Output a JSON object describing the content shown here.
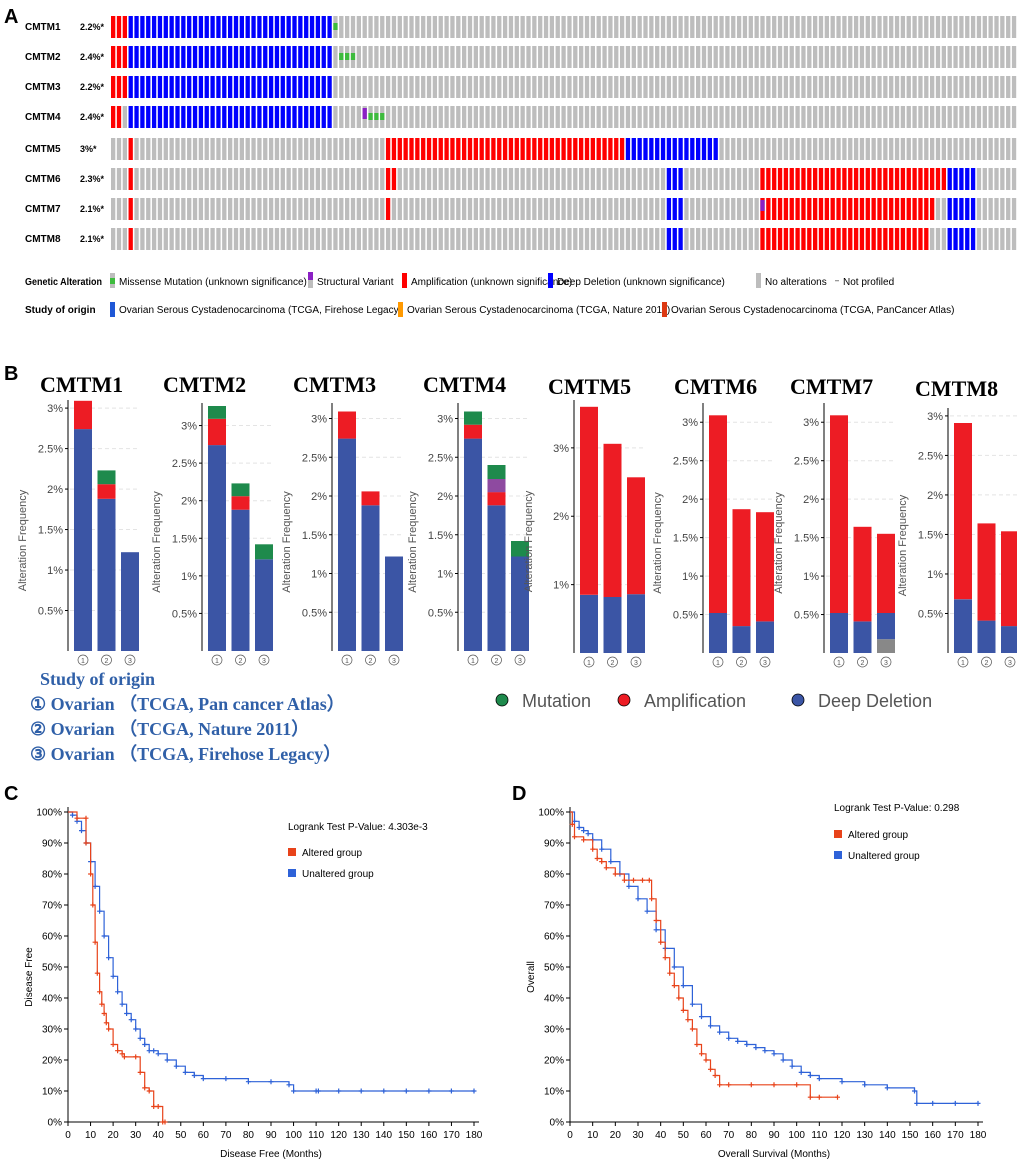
{
  "panel_letters": {
    "a": "A",
    "b": "B",
    "c": "C",
    "d": "D"
  },
  "legend_a": {
    "genetic_alteration_label": "Genetic Alteration",
    "items": [
      {
        "label": "Missense Mutation (unknown significance)",
        "color": "#3dbb3d",
        "glyph": "short"
      },
      {
        "label": "Structural Variant",
        "color": "#8b20c4",
        "glyph": "short"
      },
      {
        "label": "Amplification (unknown significance)",
        "color": "#ff0000",
        "glyph": "full"
      },
      {
        "label": "Deep Deletion (unknown significance)",
        "color": "#0000ff",
        "glyph": "full"
      },
      {
        "label": "No alterations",
        "color": "#bdbdbd",
        "glyph": "full"
      },
      {
        "label": "Not profiled",
        "color": "#999999",
        "glyph": "dash"
      }
    ],
    "study_origin_label": "Study of origin",
    "studies": [
      {
        "label": "Ovarian Serous Cystadenocarcinoma (TCGA, Firehose Legacy)",
        "color": "#1f57d6"
      },
      {
        "label": "Ovarian Serous Cystadenocarcinoma (TCGA, Nature 2011)",
        "color": "#ff9900"
      },
      {
        "label": "Ovarian Serous Cystadenocarcinoma (TCGA, PanCancer Atlas)",
        "color": "#dc3912"
      }
    ]
  },
  "oncoprint": {
    "colors": {
      "amp": "#ff0000",
      "del": "#0000ff",
      "none": "#bdbdbd",
      "mut": "#3dbb3d",
      "sv": "#8b20c4"
    },
    "rows": [
      {
        "gene": "CMTM1",
        "pct": "2.2%*",
        "segments": [
          [
            "amp",
            3
          ],
          [
            "del",
            35
          ],
          [
            "none",
            117
          ]
        ],
        "marks": [
          {
            "type": "mut",
            "i": 38
          }
        ]
      },
      {
        "gene": "CMTM2",
        "pct": "2.4%*",
        "segments": [
          [
            "amp",
            3
          ],
          [
            "del",
            35
          ],
          [
            "none",
            117
          ]
        ],
        "marks": [
          {
            "type": "mut",
            "i": 39
          },
          {
            "type": "mut",
            "i": 40
          },
          {
            "type": "mut",
            "i": 41
          }
        ]
      },
      {
        "gene": "CMTM3",
        "pct": "2.2%*",
        "segments": [
          [
            "amp",
            3
          ],
          [
            "del",
            35
          ],
          [
            "none",
            117
          ]
        ],
        "marks": []
      },
      {
        "gene": "CMTM4",
        "pct": "2.4%*",
        "segments": [
          [
            "amp",
            2
          ],
          [
            "none",
            1
          ],
          [
            "del",
            35
          ],
          [
            "none",
            117
          ]
        ],
        "marks": [
          {
            "type": "sv",
            "i": 43
          },
          {
            "type": "mut",
            "i": 44
          },
          {
            "type": "mut",
            "i": 45
          },
          {
            "type": "mut",
            "i": 46
          }
        ]
      },
      {
        "gene": "CMTM5",
        "pct": "3%*",
        "segments": [
          [
            "none",
            3
          ],
          [
            "amp",
            1
          ],
          [
            "none",
            43
          ],
          [
            "amp",
            41
          ],
          [
            "del",
            16
          ],
          [
            "none",
            51
          ]
        ],
        "marks": []
      },
      {
        "gene": "CMTM6",
        "pct": "2.3%*",
        "segments": [
          [
            "none",
            3
          ],
          [
            "amp",
            1
          ],
          [
            "none",
            43
          ],
          [
            "amp",
            2
          ],
          [
            "none",
            46
          ],
          [
            "del",
            3
          ],
          [
            "none",
            13
          ],
          [
            "amp",
            32
          ],
          [
            "del",
            5
          ],
          [
            "none",
            7
          ]
        ],
        "marks": []
      },
      {
        "gene": "CMTM7",
        "pct": "2.1%*",
        "segments": [
          [
            "none",
            3
          ],
          [
            "amp",
            1
          ],
          [
            "none",
            43
          ],
          [
            "amp",
            1
          ],
          [
            "none",
            47
          ],
          [
            "del",
            3
          ],
          [
            "none",
            13
          ],
          [
            "amp",
            30
          ],
          [
            "none",
            2
          ],
          [
            "del",
            5
          ],
          [
            "none",
            7
          ]
        ],
        "marks": [
          {
            "type": "sv",
            "i": 111
          }
        ]
      },
      {
        "gene": "CMTM8",
        "pct": "2.1%*",
        "segments": [
          [
            "none",
            3
          ],
          [
            "amp",
            1
          ],
          [
            "none",
            43
          ],
          [
            "none",
            48
          ],
          [
            "del",
            3
          ],
          [
            "none",
            13
          ],
          [
            "amp",
            29
          ],
          [
            "none",
            3
          ],
          [
            "del",
            5
          ],
          [
            "none",
            7
          ]
        ],
        "marks": []
      }
    ]
  },
  "panel_b": {
    "ylabel": "Alteration Frequency",
    "colors": {
      "del": "#3b55a5",
      "amp": "#ed1c24",
      "mut": "#1e8a4c",
      "sv": "#8e4aa0",
      "gray": "#888888"
    },
    "charts": [
      {
        "title": "CMTM1",
        "ymax": 3.1,
        "yticks": [
          0.5,
          1,
          1.5,
          2,
          2.5,
          3
        ],
        "bars": [
          {
            "del": 2.74,
            "amp": 0.35,
            "mut": 0
          },
          {
            "del": 1.88,
            "amp": 0.18,
            "mut": 0.17
          },
          {
            "del": 1.22,
            "amp": 0,
            "mut": 0
          }
        ]
      },
      {
        "title": "CMTM2",
        "ymax": 3.3,
        "yticks": [
          0.5,
          1,
          1.5,
          2,
          2.5,
          3
        ],
        "bars": [
          {
            "del": 2.74,
            "amp": 0.35,
            "mut": 0.17
          },
          {
            "del": 1.88,
            "amp": 0.18,
            "mut": 0.17
          },
          {
            "del": 1.22,
            "amp": 0,
            "mut": 0.2
          }
        ]
      },
      {
        "title": "CMTM3",
        "ymax": 3.2,
        "yticks": [
          0.5,
          1,
          1.5,
          2,
          2.5,
          3
        ],
        "bars": [
          {
            "del": 2.74,
            "amp": 0.35,
            "mut": 0
          },
          {
            "del": 1.88,
            "amp": 0.18,
            "mut": 0
          },
          {
            "del": 1.22,
            "amp": 0,
            "mut": 0
          }
        ]
      },
      {
        "title": "CMTM4",
        "ymax": 3.2,
        "yticks": [
          0.5,
          1,
          1.5,
          2,
          2.5,
          3
        ],
        "bars": [
          {
            "del": 2.74,
            "amp": 0.18,
            "mut": 0.17
          },
          {
            "del": 1.88,
            "amp": 0.17,
            "sv": 0.17,
            "mut": 0.18
          },
          {
            "del": 1.22,
            "amp": 0,
            "mut": 0.2
          }
        ]
      },
      {
        "title": "CMTM5",
        "ymax": 3.7,
        "yticks": [
          1,
          2,
          3
        ],
        "bars": [
          {
            "del": 0.85,
            "amp": 2.75
          },
          {
            "del": 0.82,
            "amp": 2.24
          },
          {
            "del": 0.86,
            "amp": 1.71
          }
        ]
      },
      {
        "title": "CMTM6",
        "ymax": 3.25,
        "yticks": [
          0.5,
          1,
          1.5,
          2,
          2.5,
          3
        ],
        "bars": [
          {
            "del": 0.52,
            "amp": 2.57
          },
          {
            "del": 0.35,
            "amp": 1.52
          },
          {
            "del": 0.41,
            "amp": 1.42
          }
        ]
      },
      {
        "title": "CMTM7",
        "ymax": 3.25,
        "yticks": [
          0.5,
          1,
          1.5,
          2,
          2.5,
          3
        ],
        "bars": [
          {
            "del": 0.52,
            "amp": 2.57
          },
          {
            "del": 0.41,
            "amp": 1.23
          },
          {
            "gray": 0.18,
            "del": 0.34,
            "amp": 1.03
          }
        ]
      },
      {
        "title": "CMTM8",
        "ymax": 3.1,
        "yticks": [
          0.5,
          1,
          1.5,
          2,
          2.5,
          3
        ],
        "bars": [
          {
            "del": 0.68,
            "amp": 2.23
          },
          {
            "del": 0.41,
            "amp": 1.23
          },
          {
            "del": 0.34,
            "amp": 1.2
          }
        ]
      }
    ],
    "xlabels": [
      "①",
      "②",
      "③"
    ],
    "study_of_origin": {
      "title": "Study of origin",
      "lines": [
        "① Ovarian （TCGA, Pan cancer Atlas）",
        "② Ovarian （TCGA, Nature 2011）",
        "③ Ovarian （TCGA, Firehose Legacy）"
      ]
    },
    "legend": [
      {
        "label": "Mutation",
        "color": "#1e8a4c"
      },
      {
        "label": "Amplification",
        "color": "#ed1c24"
      },
      {
        "label": "Deep Deletion",
        "color": "#3b55a5"
      }
    ]
  },
  "chart_data": [
    {
      "type": "line",
      "title": "",
      "xlabel": "Disease Free (Months)",
      "ylabel": "Disease Free",
      "xlim": [
        0,
        180
      ],
      "ylim": [
        0,
        100
      ],
      "xticks": [
        0,
        10,
        20,
        30,
        40,
        50,
        60,
        70,
        80,
        90,
        100,
        110,
        120,
        130,
        140,
        150,
        160,
        170,
        180
      ],
      "yticks": [
        0,
        10,
        20,
        30,
        40,
        50,
        60,
        70,
        80,
        90,
        100
      ],
      "annotation": "Logrank Test P-Value: 4.303e-3",
      "series": [
        {
          "name": "Altered group",
          "color": "#e8431a",
          "x": [
            0,
            4,
            8,
            8,
            10,
            11,
            12,
            13,
            14,
            15,
            16,
            17,
            18,
            20,
            22,
            24,
            25,
            30,
            32,
            34,
            36,
            38,
            40,
            42,
            43
          ],
          "y": [
            100,
            98,
            98,
            90,
            80,
            70,
            58,
            48,
            42,
            38,
            35,
            32,
            30,
            25,
            23,
            22,
            21,
            21,
            16,
            11,
            10,
            5,
            5,
            0,
            0
          ]
        },
        {
          "name": "Unaltered group",
          "color": "#2e62d8",
          "x": [
            0,
            2,
            4,
            6,
            8,
            10,
            12,
            14,
            16,
            18,
            20,
            22,
            24,
            26,
            28,
            30,
            32,
            34,
            36,
            38,
            40,
            44,
            48,
            52,
            56,
            60,
            70,
            80,
            90,
            98,
            100,
            110,
            111,
            120,
            130,
            140,
            150,
            160,
            170,
            180
          ],
          "y": [
            100,
            99,
            97,
            94,
            90,
            84,
            76,
            68,
            60,
            53,
            47,
            42,
            38,
            35,
            33,
            30,
            27,
            25,
            23,
            23,
            22,
            20,
            18,
            16,
            15,
            14,
            14,
            13,
            13,
            12,
            10,
            10,
            10,
            10,
            10,
            10,
            10,
            10,
            10,
            10
          ]
        }
      ]
    },
    {
      "type": "line",
      "title": "",
      "xlabel": "Overall Survival (Months)",
      "ylabel": "Overall",
      "xlim": [
        0,
        180
      ],
      "ylim": [
        0,
        100
      ],
      "xticks": [
        0,
        10,
        20,
        30,
        40,
        50,
        60,
        70,
        80,
        90,
        100,
        110,
        120,
        130,
        140,
        150,
        160,
        170,
        180
      ],
      "yticks": [
        0,
        10,
        20,
        30,
        40,
        50,
        60,
        70,
        80,
        90,
        100
      ],
      "annotation": "Logrank Test P-Value: 0.298",
      "series": [
        {
          "name": "Altered group",
          "color": "#e8431a",
          "x": [
            0,
            1,
            2,
            6,
            10,
            12,
            14,
            16,
            20,
            24,
            28,
            32,
            35,
            36,
            38,
            40,
            42,
            44,
            46,
            48,
            50,
            52,
            54,
            56,
            58,
            60,
            62,
            64,
            66,
            70,
            80,
            90,
            100,
            106,
            110,
            118
          ],
          "y": [
            100,
            96,
            92,
            91,
            88,
            85,
            84,
            82,
            80,
            78,
            78,
            78,
            78,
            72,
            65,
            58,
            53,
            48,
            44,
            40,
            36,
            33,
            30,
            25,
            22,
            20,
            17,
            15,
            12,
            12,
            12,
            12,
            12,
            8,
            8,
            8
          ]
        },
        {
          "name": "Unaltered group",
          "color": "#2e62d8",
          "x": [
            0,
            2,
            4,
            6,
            8,
            10,
            14,
            18,
            22,
            26,
            30,
            34,
            38,
            42,
            46,
            50,
            54,
            58,
            62,
            66,
            70,
            74,
            78,
            82,
            86,
            90,
            94,
            98,
            102,
            106,
            110,
            120,
            130,
            140,
            152,
            153,
            160,
            170,
            180
          ],
          "y": [
            100,
            97,
            95,
            94,
            93,
            91,
            88,
            84,
            80,
            76,
            72,
            68,
            62,
            56,
            50,
            44,
            38,
            34,
            31,
            29,
            27,
            26,
            25,
            24,
            23,
            22,
            20,
            18,
            16,
            15,
            14,
            13,
            12,
            11,
            10,
            6,
            6,
            6,
            6
          ]
        }
      ]
    }
  ]
}
